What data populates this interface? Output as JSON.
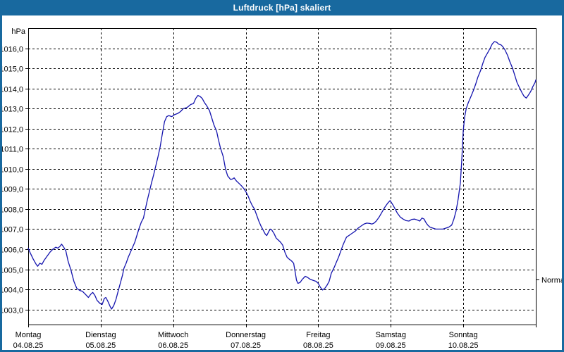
{
  "window": {
    "title": "Luftdruck [hPa] skaliert"
  },
  "colors": {
    "titlebar": "#18699f",
    "frame": "#18699f",
    "line": "#1414ae",
    "grid": "#000000",
    "text": "#000000",
    "background": "#ffffff"
  },
  "chart_data": {
    "type": "line",
    "title": "Luftdruck [hPa] skaliert",
    "ylabel": "hPa",
    "unit": "hPa",
    "ylim": [
      1002.25,
      1017.0
    ],
    "y_ticks": [
      1003,
      1004,
      1005,
      1006,
      1007,
      1008,
      1009,
      1010,
      1011,
      1012,
      1013,
      1014,
      1015,
      1016
    ],
    "decimal_separator": ",",
    "grid": "dashed",
    "legend": "none",
    "x_range_days": [
      0,
      7
    ],
    "x_days": [
      {
        "day": "Montag",
        "date": "04.08.25"
      },
      {
        "day": "Dienstag",
        "date": "05.08.25"
      },
      {
        "day": "Mittwoch",
        "date": "06.08.25"
      },
      {
        "day": "Donnerstag",
        "date": "07.08.25"
      },
      {
        "day": "Freitag",
        "date": "08.08.25"
      },
      {
        "day": "Samstag",
        "date": "09.08.25"
      },
      {
        "day": "Sonntag",
        "date": "10.08.25"
      }
    ],
    "normal_marker": {
      "label": "Normal",
      "value": 1004.5
    },
    "series": [
      {
        "name": "Luftdruck",
        "color": "#1414ae",
        "points": [
          [
            0.0,
            1006.05
          ],
          [
            0.03,
            1005.8
          ],
          [
            0.07,
            1005.5
          ],
          [
            0.11,
            1005.25
          ],
          [
            0.13,
            1005.15
          ],
          [
            0.16,
            1005.3
          ],
          [
            0.19,
            1005.25
          ],
          [
            0.22,
            1005.45
          ],
          [
            0.26,
            1005.65
          ],
          [
            0.3,
            1005.85
          ],
          [
            0.34,
            1006.0
          ],
          [
            0.38,
            1006.1
          ],
          [
            0.41,
            1006.05
          ],
          [
            0.44,
            1006.15
          ],
          [
            0.46,
            1006.25
          ],
          [
            0.49,
            1006.1
          ],
          [
            0.52,
            1005.9
          ],
          [
            0.55,
            1005.4
          ],
          [
            0.59,
            1004.95
          ],
          [
            0.63,
            1004.4
          ],
          [
            0.67,
            1004.05
          ],
          [
            0.71,
            1003.95
          ],
          [
            0.75,
            1003.9
          ],
          [
            0.79,
            1003.75
          ],
          [
            0.83,
            1003.6
          ],
          [
            0.86,
            1003.75
          ],
          [
            0.89,
            1003.85
          ],
          [
            0.92,
            1003.7
          ],
          [
            0.95,
            1003.45
          ],
          [
            0.99,
            1003.3
          ],
          [
            1.02,
            1003.25
          ],
          [
            1.05,
            1003.55
          ],
          [
            1.07,
            1003.6
          ],
          [
            1.1,
            1003.4
          ],
          [
            1.13,
            1003.15
          ],
          [
            1.15,
            1003.02
          ],
          [
            1.18,
            1003.2
          ],
          [
            1.21,
            1003.5
          ],
          [
            1.24,
            1003.9
          ],
          [
            1.27,
            1004.3
          ],
          [
            1.3,
            1004.7
          ],
          [
            1.32,
            1005.05
          ],
          [
            1.35,
            1005.3
          ],
          [
            1.38,
            1005.6
          ],
          [
            1.41,
            1005.85
          ],
          [
            1.44,
            1006.1
          ],
          [
            1.47,
            1006.35
          ],
          [
            1.5,
            1006.7
          ],
          [
            1.53,
            1007.05
          ],
          [
            1.56,
            1007.35
          ],
          [
            1.59,
            1007.55
          ],
          [
            1.61,
            1007.9
          ],
          [
            1.64,
            1008.4
          ],
          [
            1.67,
            1008.85
          ],
          [
            1.7,
            1009.3
          ],
          [
            1.73,
            1009.7
          ],
          [
            1.76,
            1010.15
          ],
          [
            1.79,
            1010.6
          ],
          [
            1.82,
            1011.1
          ],
          [
            1.85,
            1011.75
          ],
          [
            1.88,
            1012.35
          ],
          [
            1.91,
            1012.6
          ],
          [
            1.94,
            1012.65
          ],
          [
            1.98,
            1012.6
          ],
          [
            2.02,
            1012.7
          ],
          [
            2.06,
            1012.75
          ],
          [
            2.1,
            1012.85
          ],
          [
            2.14,
            1013.0
          ],
          [
            2.19,
            1013.05
          ],
          [
            2.24,
            1013.2
          ],
          [
            2.28,
            1013.25
          ],
          [
            2.31,
            1013.5
          ],
          [
            2.34,
            1013.65
          ],
          [
            2.37,
            1013.6
          ],
          [
            2.4,
            1013.5
          ],
          [
            2.43,
            1013.3
          ],
          [
            2.46,
            1013.15
          ],
          [
            2.5,
            1012.9
          ],
          [
            2.53,
            1012.55
          ],
          [
            2.56,
            1012.2
          ],
          [
            2.6,
            1011.85
          ],
          [
            2.62,
            1011.5
          ],
          [
            2.65,
            1011.05
          ],
          [
            2.69,
            1010.6
          ],
          [
            2.72,
            1010.0
          ],
          [
            2.75,
            1009.65
          ],
          [
            2.79,
            1009.47
          ],
          [
            2.82,
            1009.5
          ],
          [
            2.84,
            1009.55
          ],
          [
            2.87,
            1009.4
          ],
          [
            2.9,
            1009.3
          ],
          [
            2.94,
            1009.16
          ],
          [
            2.97,
            1009.03
          ],
          [
            3.0,
            1008.87
          ],
          [
            3.03,
            1008.67
          ],
          [
            3.06,
            1008.4
          ],
          [
            3.09,
            1008.17
          ],
          [
            3.12,
            1008.0
          ],
          [
            3.15,
            1007.7
          ],
          [
            3.18,
            1007.4
          ],
          [
            3.21,
            1007.15
          ],
          [
            3.24,
            1006.95
          ],
          [
            3.27,
            1006.75
          ],
          [
            3.29,
            1006.68
          ],
          [
            3.32,
            1006.9
          ],
          [
            3.34,
            1007.0
          ],
          [
            3.36,
            1006.95
          ],
          [
            3.39,
            1006.78
          ],
          [
            3.42,
            1006.55
          ],
          [
            3.45,
            1006.45
          ],
          [
            3.48,
            1006.35
          ],
          [
            3.51,
            1006.2
          ],
          [
            3.54,
            1005.85
          ],
          [
            3.57,
            1005.6
          ],
          [
            3.6,
            1005.5
          ],
          [
            3.63,
            1005.42
          ],
          [
            3.66,
            1005.3
          ],
          [
            3.68,
            1004.9
          ],
          [
            3.7,
            1004.45
          ],
          [
            3.72,
            1004.3
          ],
          [
            3.75,
            1004.35
          ],
          [
            3.78,
            1004.5
          ],
          [
            3.82,
            1004.65
          ],
          [
            3.85,
            1004.6
          ],
          [
            3.89,
            1004.5
          ],
          [
            3.93,
            1004.45
          ],
          [
            3.97,
            1004.4
          ],
          [
            4.0,
            1004.3
          ],
          [
            4.03,
            1004.1
          ],
          [
            4.06,
            1003.97
          ],
          [
            4.09,
            1004.05
          ],
          [
            4.12,
            1004.2
          ],
          [
            4.15,
            1004.4
          ],
          [
            4.18,
            1004.8
          ],
          [
            4.22,
            1005.1
          ],
          [
            4.25,
            1005.35
          ],
          [
            4.28,
            1005.6
          ],
          [
            4.31,
            1005.9
          ],
          [
            4.34,
            1006.2
          ],
          [
            4.37,
            1006.45
          ],
          [
            4.39,
            1006.6
          ],
          [
            4.43,
            1006.7
          ],
          [
            4.47,
            1006.8
          ],
          [
            4.51,
            1006.9
          ],
          [
            4.55,
            1007.05
          ],
          [
            4.59,
            1007.15
          ],
          [
            4.63,
            1007.25
          ],
          [
            4.67,
            1007.3
          ],
          [
            4.71,
            1007.28
          ],
          [
            4.74,
            1007.25
          ],
          [
            4.77,
            1007.3
          ],
          [
            4.8,
            1007.4
          ],
          [
            4.84,
            1007.6
          ],
          [
            4.88,
            1007.85
          ],
          [
            4.92,
            1008.1
          ],
          [
            4.96,
            1008.3
          ],
          [
            4.99,
            1008.42
          ],
          [
            5.03,
            1008.2
          ],
          [
            5.06,
            1008.0
          ],
          [
            5.09,
            1007.8
          ],
          [
            5.13,
            1007.6
          ],
          [
            5.17,
            1007.5
          ],
          [
            5.21,
            1007.42
          ],
          [
            5.25,
            1007.4
          ],
          [
            5.29,
            1007.48
          ],
          [
            5.33,
            1007.5
          ],
          [
            5.37,
            1007.45
          ],
          [
            5.4,
            1007.4
          ],
          [
            5.43,
            1007.55
          ],
          [
            5.46,
            1007.5
          ],
          [
            5.48,
            1007.35
          ],
          [
            5.51,
            1007.2
          ],
          [
            5.54,
            1007.1
          ],
          [
            5.58,
            1007.05
          ],
          [
            5.62,
            1007.0
          ],
          [
            5.67,
            1007.0
          ],
          [
            5.72,
            1007.0
          ],
          [
            5.76,
            1007.05
          ],
          [
            5.8,
            1007.1
          ],
          [
            5.84,
            1007.2
          ],
          [
            5.87,
            1007.5
          ],
          [
            5.9,
            1007.9
          ],
          [
            5.93,
            1008.5
          ],
          [
            5.96,
            1009.3
          ],
          [
            5.98,
            1010.5
          ],
          [
            6.0,
            1011.9
          ],
          [
            6.02,
            1012.6
          ],
          [
            6.04,
            1013.0
          ],
          [
            6.07,
            1013.3
          ],
          [
            6.1,
            1013.55
          ],
          [
            6.14,
            1013.9
          ],
          [
            6.17,
            1014.2
          ],
          [
            6.2,
            1014.55
          ],
          [
            6.24,
            1014.9
          ],
          [
            6.27,
            1015.25
          ],
          [
            6.3,
            1015.55
          ],
          [
            6.34,
            1015.8
          ],
          [
            6.37,
            1016.0
          ],
          [
            6.4,
            1016.22
          ],
          [
            6.43,
            1016.33
          ],
          [
            6.46,
            1016.3
          ],
          [
            6.49,
            1016.2
          ],
          [
            6.52,
            1016.17
          ],
          [
            6.54,
            1016.1
          ],
          [
            6.57,
            1015.95
          ],
          [
            6.61,
            1015.65
          ],
          [
            6.64,
            1015.35
          ],
          [
            6.68,
            1015.0
          ],
          [
            6.71,
            1014.65
          ],
          [
            6.74,
            1014.3
          ],
          [
            6.78,
            1014.0
          ],
          [
            6.81,
            1013.78
          ],
          [
            6.84,
            1013.6
          ],
          [
            6.87,
            1013.52
          ],
          [
            6.9,
            1013.68
          ],
          [
            6.93,
            1013.85
          ],
          [
            6.96,
            1014.1
          ],
          [
            6.99,
            1014.3
          ],
          [
            7.0,
            1014.42
          ]
        ]
      }
    ]
  }
}
